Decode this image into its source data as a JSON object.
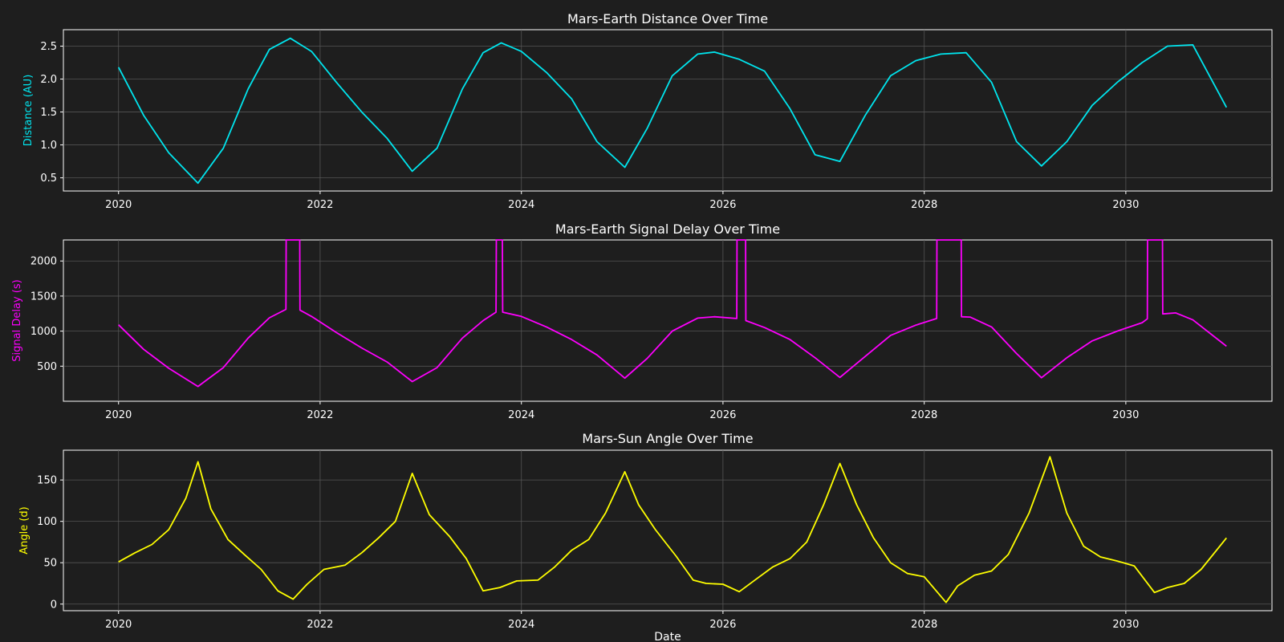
{
  "figure": {
    "background": "#1e1e1e",
    "xlabel": "Date"
  },
  "chart_data": [
    {
      "type": "line",
      "title": "Mars-Earth Distance Over Time",
      "xlabel": "",
      "ylabel": "Distance (AU)",
      "color": "#00e5ee",
      "xlim": [
        "2019-06-15",
        "2031-06-15"
      ],
      "ylim": [
        0.3,
        2.75
      ],
      "xticks": [
        "2020",
        "2022",
        "2024",
        "2026",
        "2028",
        "2030"
      ],
      "yticks": [
        0.5,
        1.0,
        1.5,
        2.0,
        2.5
      ],
      "ytick_labels": [
        "0.5",
        "1.0",
        "1.5",
        "2.0",
        "2.5"
      ],
      "grid": true,
      "x": [
        "2020-01-01",
        "2020-04-01",
        "2020-07-01",
        "2020-10-15",
        "2021-01-15",
        "2021-04-15",
        "2021-07-01",
        "2021-09-15",
        "2021-12-01",
        "2022-03-01",
        "2022-06-01",
        "2022-09-01",
        "2022-12-01",
        "2023-03-01",
        "2023-06-01",
        "2023-08-15",
        "2023-10-20",
        "2024-01-01",
        "2024-04-01",
        "2024-07-01",
        "2024-10-01",
        "2025-01-10",
        "2025-04-01",
        "2025-07-01",
        "2025-10-01",
        "2025-12-01",
        "2026-03-01",
        "2026-06-01",
        "2026-09-01",
        "2026-12-01",
        "2027-03-01",
        "2027-06-01",
        "2027-09-01",
        "2027-12-01",
        "2028-03-01",
        "2028-06-01",
        "2028-09-01",
        "2028-12-01",
        "2029-03-01",
        "2029-06-01",
        "2029-09-01",
        "2029-12-01",
        "2030-03-01",
        "2030-06-01",
        "2030-09-01",
        "2031-01-01"
      ],
      "values": [
        2.18,
        1.45,
        0.88,
        0.42,
        0.95,
        1.85,
        2.45,
        2.62,
        2.42,
        1.95,
        1.5,
        1.1,
        0.6,
        0.95,
        1.85,
        2.4,
        2.55,
        2.42,
        2.1,
        1.7,
        1.05,
        0.66,
        1.25,
        2.05,
        2.38,
        2.41,
        2.3,
        2.12,
        1.55,
        0.85,
        0.75,
        1.45,
        2.05,
        2.28,
        2.38,
        2.4,
        1.95,
        1.05,
        0.68,
        1.05,
        1.6,
        1.95,
        2.25,
        2.5,
        2.52,
        1.57
      ]
    },
    {
      "type": "line",
      "title": "Mars-Earth Signal Delay Over Time",
      "xlabel": "",
      "ylabel": "Signal Delay (s)",
      "color": "#ff00ff",
      "xlim": [
        "2019-06-15",
        "2031-06-15"
      ],
      "ylim": [
        0,
        2300
      ],
      "xticks": [
        "2020",
        "2022",
        "2024",
        "2026",
        "2028",
        "2030"
      ],
      "yticks": [
        500,
        1000,
        1500,
        2000
      ],
      "ytick_labels": [
        "500",
        "1000",
        "1500",
        "2000"
      ],
      "grid": true,
      "x": [
        "2020-01-01",
        "2020-04-01",
        "2020-07-01",
        "2020-10-15",
        "2021-01-15",
        "2021-04-15",
        "2021-07-01",
        "2021-08-30",
        "2021-08-31",
        "2021-10-19",
        "2021-10-20",
        "2021-12-01",
        "2022-03-01",
        "2022-06-01",
        "2022-09-01",
        "2022-12-01",
        "2023-03-01",
        "2023-06-01",
        "2023-08-15",
        "2023-10-01",
        "2023-10-02",
        "2023-10-24",
        "2023-10-25",
        "2024-01-01",
        "2024-04-01",
        "2024-07-01",
        "2024-10-01",
        "2025-01-10",
        "2025-04-01",
        "2025-07-01",
        "2025-10-01",
        "2025-12-01",
        "2026-02-20",
        "2026-02-21",
        "2026-03-24",
        "2026-03-25",
        "2026-06-01",
        "2026-09-01",
        "2026-12-01",
        "2027-03-01",
        "2027-06-01",
        "2027-09-01",
        "2027-12-01",
        "2028-02-15",
        "2028-02-16",
        "2028-05-14",
        "2028-05-15",
        "2028-06-15",
        "2028-09-01",
        "2028-12-01",
        "2029-03-01",
        "2029-06-01",
        "2029-09-01",
        "2029-12-01",
        "2030-03-01",
        "2030-03-20",
        "2030-03-21",
        "2030-05-14",
        "2030-05-15",
        "2030-07-01",
        "2030-09-01",
        "2031-01-01"
      ],
      "values": [
        1090,
        740,
        470,
        210,
        480,
        900,
        1190,
        1310,
        2300,
        2300,
        1300,
        1210,
        980,
        760,
        560,
        280,
        480,
        900,
        1150,
        1270,
        2300,
        2300,
        1270,
        1210,
        1060,
        880,
        660,
        330,
        610,
        1000,
        1185,
        1205,
        1180,
        2300,
        2300,
        1150,
        1050,
        880,
        620,
        340,
        640,
        940,
        1085,
        1180,
        2300,
        2300,
        1205,
        1200,
        1060,
        680,
        335,
        620,
        860,
        1000,
        1120,
        1175,
        2300,
        2300,
        1245,
        1260,
        1160,
        785
      ]
    },
    {
      "type": "line",
      "title": "Mars-Sun Angle Over Time",
      "xlabel": "Date",
      "ylabel": "Angle (d)",
      "color": "#ffff00",
      "xlim": [
        "2019-06-15",
        "2031-06-15"
      ],
      "ylim": [
        -8,
        186
      ],
      "xticks": [
        "2020",
        "2022",
        "2024",
        "2026",
        "2028",
        "2030"
      ],
      "yticks": [
        0,
        50,
        100,
        150
      ],
      "ytick_labels": [
        "0",
        "50",
        "100",
        "150"
      ],
      "grid": true,
      "x": [
        "2020-01-01",
        "2020-03-01",
        "2020-05-01",
        "2020-07-01",
        "2020-09-01",
        "2020-10-15",
        "2020-12-01",
        "2021-02-01",
        "2021-04-01",
        "2021-06-01",
        "2021-08-01",
        "2021-09-25",
        "2021-11-15",
        "2022-01-15",
        "2022-04-01",
        "2022-06-01",
        "2022-08-01",
        "2022-10-01",
        "2022-12-01",
        "2023-02-01",
        "2023-04-15",
        "2023-06-15",
        "2023-08-15",
        "2023-10-15",
        "2023-12-15",
        "2024-03-01",
        "2024-05-01",
        "2024-07-01",
        "2024-09-01",
        "2024-11-01",
        "2025-01-10",
        "2025-03-01",
        "2025-05-01",
        "2025-07-15",
        "2025-09-15",
        "2025-11-01",
        "2026-01-01",
        "2026-03-01",
        "2026-05-01",
        "2026-07-01",
        "2026-09-01",
        "2026-11-01",
        "2027-01-01",
        "2027-03-01",
        "2027-05-01",
        "2027-07-01",
        "2027-09-01",
        "2027-11-01",
        "2028-01-01",
        "2028-03-20",
        "2028-05-01",
        "2028-07-01",
        "2028-09-01",
        "2028-11-01",
        "2029-01-15",
        "2029-04-01",
        "2029-06-01",
        "2029-08-01",
        "2029-10-01",
        "2029-12-01",
        "2030-02-01",
        "2030-04-15",
        "2030-06-01",
        "2030-08-01",
        "2030-10-01",
        "2031-01-01"
      ],
      "values": [
        51,
        62,
        72,
        90,
        128,
        172,
        115,
        78,
        60,
        42,
        16,
        6,
        24,
        42,
        47,
        62,
        80,
        100,
        158,
        108,
        82,
        55,
        16,
        20,
        28,
        29,
        45,
        65,
        78,
        110,
        160,
        120,
        90,
        58,
        29,
        25,
        24,
        15,
        30,
        45,
        55,
        75,
        120,
        170,
        120,
        80,
        50,
        37,
        33,
        2,
        22,
        35,
        40,
        60,
        110,
        178,
        110,
        70,
        57,
        52,
        46,
        14,
        20,
        25,
        42,
        80
      ]
    }
  ]
}
